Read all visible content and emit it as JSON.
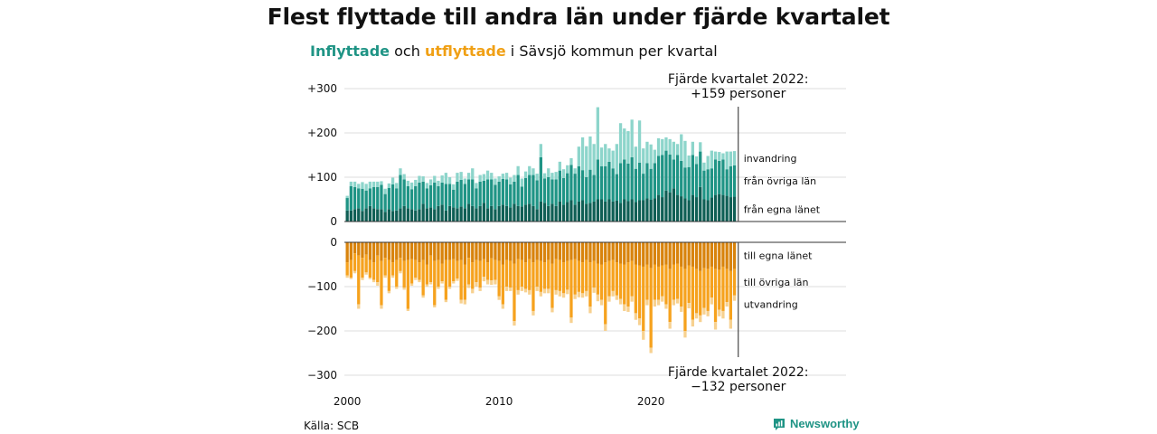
{
  "title": "Flest flyttade till andra län under fjärde kvartalet",
  "subtitle": {
    "in_word": "Inflyttade",
    "mid": "och",
    "out_word": "utflyttade",
    "rest": "i Sävsjö kommun per kvartal"
  },
  "source": "Källa: SCB",
  "brand": "Newsworthy",
  "colors": {
    "in_own": "#0f5f55",
    "in_other": "#1f9485",
    "in_abroad": "#8dd5cb",
    "out_own": "#d8830c",
    "out_other": "#f6a21e",
    "out_abroad": "#f7d190",
    "accent_in": "#1f9485",
    "accent_out": "#f0a015"
  },
  "chart_data": {
    "type": "bar",
    "stacked": true,
    "diverging": true,
    "x_start": "2000 Q1",
    "x_ticks": [
      "2000",
      "2010",
      "2020"
    ],
    "y_ticks_upper": [
      "+300",
      "+200",
      "+100",
      "0"
    ],
    "y_ticks_lower": [
      "0",
      "−100",
      "−200",
      "−300"
    ],
    "ylim_in": [
      0,
      300
    ],
    "ylim_out": [
      -300,
      0
    ],
    "grid": true,
    "annotation_in": [
      "Fjärde kvartalet 2022:",
      "+159 personer"
    ],
    "annotation_out": [
      "Fjärde kvartalet 2022:",
      "−132 personer"
    ],
    "series_in_labels": [
      "invandring",
      "från övriga län",
      "från egna länet"
    ],
    "series_out_labels": [
      "till egna länet",
      "till övriga län",
      "utvandring"
    ],
    "inflow": [
      [
        25,
        28,
        5
      ],
      [
        25,
        55,
        10
      ],
      [
        28,
        50,
        12
      ],
      [
        30,
        45,
        10
      ],
      [
        24,
        50,
        15
      ],
      [
        30,
        40,
        15
      ],
      [
        35,
        40,
        15
      ],
      [
        30,
        48,
        12
      ],
      [
        28,
        50,
        12
      ],
      [
        28,
        55,
        8
      ],
      [
        22,
        40,
        12
      ],
      [
        28,
        48,
        10
      ],
      [
        24,
        60,
        15
      ],
      [
        25,
        50,
        12
      ],
      [
        30,
        75,
        15
      ],
      [
        35,
        60,
        12
      ],
      [
        30,
        50,
        12
      ],
      [
        28,
        45,
        15
      ],
      [
        25,
        55,
        14
      ],
      [
        28,
        60,
        15
      ],
      [
        40,
        50,
        12
      ],
      [
        30,
        45,
        12
      ],
      [
        32,
        50,
        13
      ],
      [
        28,
        60,
        15
      ],
      [
        35,
        45,
        12
      ],
      [
        38,
        50,
        16
      ],
      [
        25,
        60,
        25
      ],
      [
        35,
        50,
        15
      ],
      [
        32,
        40,
        12
      ],
      [
        30,
        60,
        20
      ],
      [
        34,
        60,
        18
      ],
      [
        30,
        55,
        12
      ],
      [
        40,
        55,
        15
      ],
      [
        35,
        60,
        25
      ],
      [
        30,
        45,
        12
      ],
      [
        35,
        55,
        15
      ],
      [
        42,
        50,
        15
      ],
      [
        30,
        65,
        20
      ],
      [
        35,
        60,
        15
      ],
      [
        28,
        55,
        14
      ],
      [
        35,
        55,
        12
      ],
      [
        38,
        58,
        12
      ],
      [
        35,
        60,
        15
      ],
      [
        32,
        52,
        15
      ],
      [
        40,
        50,
        15
      ],
      [
        35,
        70,
        20
      ],
      [
        34,
        45,
        18
      ],
      [
        38,
        60,
        15
      ],
      [
        40,
        65,
        20
      ],
      [
        35,
        70,
        15
      ],
      [
        28,
        65,
        15
      ],
      [
        45,
        100,
        30
      ],
      [
        42,
        55,
        12
      ],
      [
        35,
        65,
        20
      ],
      [
        40,
        55,
        15
      ],
      [
        35,
        60,
        17
      ],
      [
        45,
        70,
        20
      ],
      [
        38,
        60,
        20
      ],
      [
        44,
        65,
        18
      ],
      [
        48,
        80,
        15
      ],
      [
        38,
        70,
        12
      ],
      [
        45,
        80,
        44
      ],
      [
        48,
        68,
        74
      ],
      [
        40,
        60,
        70
      ],
      [
        42,
        75,
        75
      ],
      [
        45,
        60,
        70
      ],
      [
        50,
        90,
        118
      ],
      [
        50,
        75,
        42
      ],
      [
        45,
        80,
        50
      ],
      [
        50,
        85,
        30
      ],
      [
        45,
        75,
        40
      ],
      [
        47,
        60,
        68
      ],
      [
        42,
        90,
        90
      ],
      [
        50,
        90,
        70
      ],
      [
        46,
        85,
        73
      ],
      [
        50,
        95,
        85
      ],
      [
        44,
        75,
        50
      ],
      [
        48,
        85,
        95
      ],
      [
        48,
        60,
        57
      ],
      [
        52,
        80,
        48
      ],
      [
        49,
        70,
        55
      ],
      [
        52,
        80,
        30
      ],
      [
        60,
        88,
        40
      ],
      [
        55,
        95,
        36
      ],
      [
        70,
        90,
        30
      ],
      [
        66,
        85,
        35
      ],
      [
        75,
        65,
        40
      ],
      [
        60,
        90,
        25
      ],
      [
        57,
        80,
        60
      ],
      [
        52,
        70,
        60
      ],
      [
        48,
        75,
        26
      ],
      [
        60,
        90,
        30
      ],
      [
        55,
        75,
        17
      ],
      [
        78,
        80,
        21
      ],
      [
        50,
        65,
        18
      ],
      [
        48,
        70,
        30
      ],
      [
        54,
        66,
        40
      ],
      [
        60,
        80,
        18
      ],
      [
        62,
        75,
        20
      ],
      [
        60,
        80,
        14
      ],
      [
        58,
        60,
        40
      ],
      [
        55,
        70,
        33
      ],
      [
        56,
        71,
        32
      ]
    ],
    "outflow": [
      [
        45,
        30,
        5
      ],
      [
        40,
        40,
        3
      ],
      [
        25,
        40,
        5
      ],
      [
        30,
        110,
        10
      ],
      [
        35,
        45,
        5
      ],
      [
        28,
        40,
        5
      ],
      [
        40,
        40,
        3
      ],
      [
        45,
        40,
        5
      ],
      [
        30,
        60,
        8
      ],
      [
        42,
        100,
        8
      ],
      [
        35,
        40,
        5
      ],
      [
        40,
        70,
        5
      ],
      [
        45,
        30,
        5
      ],
      [
        40,
        60,
        5
      ],
      [
        35,
        30,
        5
      ],
      [
        42,
        60,
        5
      ],
      [
        40,
        110,
        5
      ],
      [
        38,
        55,
        5
      ],
      [
        40,
        40,
        5
      ],
      [
        45,
        40,
        5
      ],
      [
        40,
        80,
        5
      ],
      [
        50,
        45,
        5
      ],
      [
        30,
        60,
        5
      ],
      [
        42,
        100,
        5
      ],
      [
        40,
        60,
        5
      ],
      [
        48,
        40,
        5
      ],
      [
        40,
        90,
        5
      ],
      [
        40,
        60,
        5
      ],
      [
        38,
        50,
        5
      ],
      [
        42,
        40,
        5
      ],
      [
        40,
        90,
        8
      ],
      [
        50,
        80,
        10
      ],
      [
        35,
        60,
        8
      ],
      [
        45,
        60,
        10
      ],
      [
        40,
        50,
        10
      ],
      [
        42,
        60,
        8
      ],
      [
        38,
        40,
        10
      ],
      [
        45,
        40,
        10
      ],
      [
        36,
        50,
        10
      ],
      [
        40,
        45,
        10
      ],
      [
        42,
        80,
        8
      ],
      [
        50,
        90,
        10
      ],
      [
        40,
        60,
        10
      ],
      [
        42,
        60,
        8
      ],
      [
        48,
        130,
        10
      ],
      [
        38,
        70,
        10
      ],
      [
        40,
        60,
        10
      ],
      [
        45,
        60,
        8
      ],
      [
        38,
        70,
        10
      ],
      [
        45,
        110,
        10
      ],
      [
        40,
        60,
        10
      ],
      [
        42,
        70,
        10
      ],
      [
        45,
        60,
        10
      ],
      [
        40,
        65,
        10
      ],
      [
        48,
        100,
        10
      ],
      [
        38,
        70,
        10
      ],
      [
        40,
        70,
        12
      ],
      [
        45,
        70,
        10
      ],
      [
        42,
        65,
        10
      ],
      [
        40,
        130,
        12
      ],
      [
        38,
        80,
        10
      ],
      [
        42,
        70,
        12
      ],
      [
        45,
        70,
        10
      ],
      [
        40,
        70,
        12
      ],
      [
        45,
        100,
        15
      ],
      [
        42,
        60,
        12
      ],
      [
        48,
        70,
        15
      ],
      [
        50,
        80,
        12
      ],
      [
        45,
        140,
        15
      ],
      [
        42,
        80,
        12
      ],
      [
        40,
        70,
        12
      ],
      [
        45,
        75,
        10
      ],
      [
        48,
        80,
        12
      ],
      [
        50,
        90,
        15
      ],
      [
        45,
        100,
        12
      ],
      [
        42,
        80,
        12
      ],
      [
        50,
        110,
        15
      ],
      [
        52,
        120,
        15
      ],
      [
        55,
        145,
        20
      ],
      [
        50,
        80,
        12
      ],
      [
        58,
        180,
        12
      ],
      [
        50,
        80,
        15
      ],
      [
        55,
        75,
        12
      ],
      [
        52,
        70,
        12
      ],
      [
        50,
        90,
        10
      ],
      [
        60,
        120,
        15
      ],
      [
        50,
        80,
        12
      ],
      [
        48,
        80,
        10
      ],
      [
        55,
        90,
        12
      ],
      [
        60,
        140,
        15
      ],
      [
        52,
        85,
        12
      ],
      [
        55,
        120,
        15
      ],
      [
        60,
        100,
        12
      ],
      [
        65,
        100,
        15
      ],
      [
        58,
        90,
        15
      ],
      [
        60,
        95,
        12
      ],
      [
        55,
        70,
        15
      ],
      [
        60,
        120,
        17
      ],
      [
        62,
        90,
        15
      ],
      [
        55,
        100,
        17
      ],
      [
        60,
        75,
        10
      ],
      [
        65,
        110,
        20
      ],
      [
        60,
        60,
        12
      ]
    ]
  }
}
